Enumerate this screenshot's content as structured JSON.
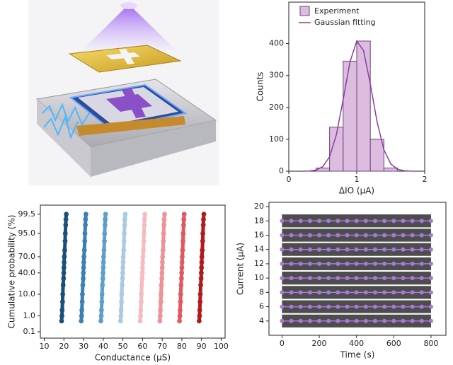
{
  "chart_data": [
    {
      "type": "histogram",
      "xlabel": "ΔIO (μA)",
      "ylabel": "Counts",
      "bins": [
        0.4,
        0.6,
        0.8,
        1.0,
        1.2,
        1.4,
        1.6
      ],
      "counts": [
        10,
        138,
        345,
        408,
        100,
        10
      ],
      "name": "Experiment",
      "color": "#dcbde0",
      "edgecolor": "#6e4479",
      "fit": {
        "name": "Gaussian fitting",
        "color": "#8a3f9a",
        "x": [
          0.2,
          0.3,
          0.4,
          0.5,
          0.6,
          0.7,
          0.8,
          0.9,
          1.0,
          1.1,
          1.2,
          1.3,
          1.4,
          1.5,
          1.6,
          1.7,
          1.8
        ],
        "values": [
          0.1,
          0.6,
          3.4,
          14,
          45,
          114,
          224,
          342,
          408,
          378,
          273,
          154,
          67,
          23,
          6,
          1.3,
          0.2
        ]
      },
      "xlim": [
        0,
        2
      ],
      "xticks": [
        0,
        1,
        2
      ],
      "ylim": [
        0,
        530
      ],
      "yticks": [
        0,
        100,
        200,
        300,
        400
      ],
      "legend": "upper left"
    },
    {
      "type": "scatter",
      "xlabel": "Conductance (μS)",
      "ylabel": "Cumulative probability (%)",
      "yscale": "probit",
      "y": [
        0.5,
        1,
        2,
        5,
        10,
        20,
        30,
        40,
        50,
        60,
        70,
        80,
        90,
        95,
        98,
        99,
        99.5
      ],
      "series": [
        {
          "color": "#1b4f79",
          "x": [
            18.8,
            19.0,
            19.1,
            19.3,
            19.4,
            19.6,
            19.8,
            19.9,
            20.0,
            20.1,
            20.2,
            20.4,
            20.6,
            20.7,
            20.9,
            21.0,
            21.2
          ]
        },
        {
          "color": "#3a80b5",
          "x": [
            28.8,
            29.0,
            29.1,
            29.3,
            29.4,
            29.6,
            29.8,
            29.9,
            30.0,
            30.1,
            30.2,
            30.4,
            30.6,
            30.7,
            30.9,
            31.0,
            31.2
          ]
        },
        {
          "color": "#5d9fcb",
          "x": [
            38.8,
            39.0,
            39.1,
            39.3,
            39.4,
            39.6,
            39.8,
            39.9,
            40.0,
            40.1,
            40.2,
            40.4,
            40.6,
            40.7,
            40.9,
            41.0,
            41.2
          ]
        },
        {
          "color": "#a8cbe1",
          "x": [
            48.8,
            49.0,
            49.1,
            49.3,
            49.4,
            49.6,
            49.8,
            49.9,
            50.0,
            50.1,
            50.2,
            50.4,
            50.6,
            50.7,
            50.9,
            51.0,
            51.2
          ]
        },
        {
          "color": "#f5bcc0",
          "x": [
            58.8,
            59.0,
            59.1,
            59.3,
            59.4,
            59.6,
            59.8,
            59.9,
            60.0,
            60.1,
            60.2,
            60.4,
            60.6,
            60.7,
            60.9,
            61.0,
            61.2
          ]
        },
        {
          "color": "#ef9195",
          "x": [
            68.8,
            69.0,
            69.1,
            69.3,
            69.4,
            69.6,
            69.8,
            69.9,
            70.0,
            70.1,
            70.2,
            70.4,
            70.6,
            70.7,
            70.9,
            71.0,
            71.2
          ]
        },
        {
          "color": "#e2585e",
          "x": [
            78.8,
            79.0,
            79.1,
            79.3,
            79.4,
            79.6,
            79.8,
            79.9,
            80.0,
            80.1,
            80.2,
            80.4,
            80.6,
            80.7,
            80.9,
            81.0,
            81.2
          ]
        },
        {
          "color": "#b01c1e",
          "x": [
            88.8,
            89.0,
            89.1,
            89.3,
            89.4,
            89.6,
            89.8,
            89.9,
            90.0,
            90.1,
            90.2,
            90.4,
            90.6,
            90.7,
            90.9,
            91.0,
            91.2
          ]
        }
      ],
      "xlim": [
        8,
        102
      ],
      "xticks": [
        10,
        20,
        30,
        40,
        50,
        60,
        70,
        80,
        90,
        100
      ],
      "ylim": [
        0.034,
        99.87
      ],
      "yticks": [
        0.1,
        {
          "value": 1,
          "label": "1.0"
        },
        {
          "value": 10,
          "label": "10.0"
        },
        {
          "value": 40,
          "label": "40.0"
        },
        {
          "value": 70,
          "label": "70.0"
        },
        {
          "value": 95,
          "label": "95.0"
        },
        99.5
      ]
    },
    {
      "type": "line",
      "xlabel": "Time (s)",
      "ylabel": "Current (μA)",
      "x": [
        0,
        50,
        100,
        150,
        200,
        250,
        300,
        350,
        400,
        450,
        500,
        550,
        600,
        650,
        700,
        750,
        800
      ],
      "bands": {
        "color": "#4d4d4d",
        "x": [
          0,
          800
        ],
        "ranges": [
          {
            "lower": [
              3.1,
              3.1
            ],
            "upper": [
              4.9,
              4.9
            ]
          },
          {
            "lower": [
              5.1,
              5.1
            ],
            "upper": [
              6.9,
              6.9
            ]
          },
          {
            "lower": [
              7.1,
              7.1
            ],
            "upper": [
              8.9,
              8.9
            ]
          },
          {
            "lower": [
              9.1,
              9.1
            ],
            "upper": [
              10.9,
              10.9
            ]
          },
          {
            "lower": [
              11.1,
              11.1
            ],
            "upper": [
              12.9,
              12.9
            ]
          },
          {
            "lower": [
              13.1,
              13.1
            ],
            "upper": [
              14.9,
              14.9
            ]
          },
          {
            "lower": [
              15.1,
              15.1
            ],
            "upper": [
              16.9,
              16.9
            ]
          },
          {
            "lower": [
              17.1,
              17.1
            ],
            "upper": [
              18.9,
              18.9
            ]
          }
        ]
      },
      "series": [
        {
          "color": "#a679d8",
          "values": [
            4,
            4,
            4,
            4,
            4,
            4,
            4,
            4,
            4,
            4,
            4,
            4,
            4,
            4,
            4,
            4,
            4
          ]
        },
        {
          "color": "#a679d8",
          "values": [
            6,
            6,
            6,
            6,
            6,
            6,
            6,
            6,
            6,
            6,
            6,
            6,
            6,
            6,
            6,
            6,
            6
          ]
        },
        {
          "color": "#a679d8",
          "values": [
            8,
            8,
            8,
            8,
            8,
            8,
            8,
            8,
            8,
            8,
            8,
            8,
            8,
            8,
            8,
            8,
            8
          ]
        },
        {
          "color": "#a679d8",
          "values": [
            10,
            10,
            10,
            10,
            10,
            10,
            10,
            10,
            10,
            10,
            10,
            10,
            10,
            10,
            10,
            10,
            10
          ]
        },
        {
          "color": "#a679d8",
          "values": [
            12,
            12,
            12,
            12,
            12,
            12,
            12,
            12,
            12,
            12,
            12,
            12,
            12,
            12,
            12,
            12,
            12
          ]
        },
        {
          "color": "#a679d8",
          "values": [
            14,
            14,
            14,
            14,
            14,
            14,
            14,
            14,
            14,
            14,
            14,
            14,
            14,
            14,
            14,
            14,
            14
          ]
        },
        {
          "color": "#a679d8",
          "values": [
            16,
            16,
            16,
            16,
            16,
            16,
            16,
            16,
            16,
            16,
            16,
            16,
            16,
            16,
            16,
            16,
            16
          ]
        },
        {
          "color": "#a679d8",
          "values": [
            18,
            18,
            18,
            18,
            18,
            18,
            18,
            18,
            18,
            18,
            18,
            18,
            18,
            18,
            18,
            18,
            18
          ]
        }
      ],
      "xlim": [
        -70,
        880
      ],
      "xticks": [
        0,
        200,
        400,
        600,
        800
      ],
      "ylim": [
        2,
        20.6
      ],
      "yticks": [
        4,
        6,
        8,
        10,
        12,
        14,
        16,
        18,
        20
      ]
    }
  ]
}
